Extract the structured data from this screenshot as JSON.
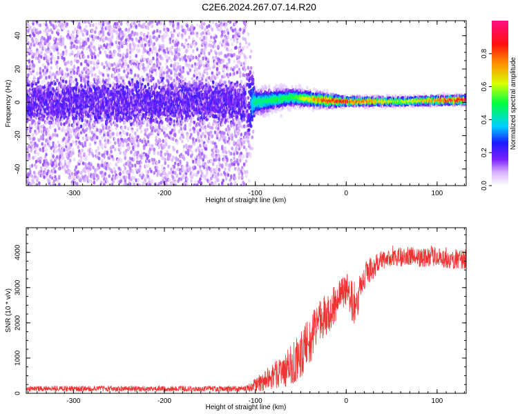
{
  "title": "C2E6.2024.267.07.14.R20",
  "colors": {
    "signal": "#ee3333",
    "scatter": "#7d2bff"
  },
  "chart_data": [
    {
      "type": "heatmap",
      "title": "C2E6.2024.267.07.14.R20",
      "xlabel": "Height of straight line (km)",
      "ylabel": "Frequency (Hz)",
      "xlim": [
        -352,
        132
      ],
      "ylim": [
        -50,
        49
      ],
      "xticks": [
        -300,
        -200,
        -100,
        0,
        100
      ],
      "yticks": [
        -40,
        -20,
        0,
        20,
        40
      ],
      "xtick_labels": [
        "-300",
        "-200",
        "-100",
        "0",
        "100"
      ],
      "ytick_labels": [
        "-40",
        "-20",
        "0",
        "20",
        "40"
      ],
      "colorbar": {
        "label": "Normalized spectral amplitude",
        "range": [
          0,
          1
        ],
        "ticks": [
          0.0,
          0.2,
          0.4,
          0.6,
          0.8
        ],
        "tick_labels": [
          "0.0",
          "0.2",
          "0.4",
          "0.6",
          "0.8"
        ]
      },
      "description_points": [
        {
          "x": -352,
          "freq_center": 0,
          "spread": 45,
          "amplitude": 0.1
        },
        {
          "x": -110,
          "freq_center": 0,
          "spread": 45,
          "amplitude": 0.1
        },
        {
          "x": -100,
          "freq_center": 0,
          "spread": 6,
          "amplitude": 0.45
        },
        {
          "x": -60,
          "freq_center": 3,
          "spread": 4,
          "amplitude": 0.5
        },
        {
          "x": -20,
          "freq_center": 1,
          "spread": 3,
          "amplitude": 0.85
        },
        {
          "x": 0,
          "freq_center": 0.5,
          "spread": 2,
          "amplitude": 0.85
        },
        {
          "x": 60,
          "freq_center": 0.5,
          "spread": 2,
          "amplitude": 0.6
        },
        {
          "x": 132,
          "freq_center": 1.5,
          "spread": 2,
          "amplitude": 0.95
        }
      ]
    },
    {
      "type": "line",
      "xlabel": "Height of straight line (km)",
      "ylabel": "SNR (10 * v/v)",
      "xlim": [
        -352,
        132
      ],
      "ylim": [
        0,
        4700
      ],
      "xticks": [
        -300,
        -200,
        -100,
        0,
        100
      ],
      "yticks": [
        0,
        1000,
        2000,
        3000,
        4000
      ],
      "xtick_labels": [
        "-300",
        "-200",
        "-100",
        "0",
        "100"
      ],
      "ytick_labels": [
        "0",
        "1000",
        "2000",
        "3000",
        "4000"
      ],
      "series": [
        {
          "name": "SNR",
          "x": [
            -352,
            -300,
            -250,
            -200,
            -150,
            -110,
            -100,
            -90,
            -80,
            -70,
            -60,
            -50,
            -40,
            -30,
            -20,
            -10,
            0,
            10,
            20,
            30,
            40,
            50,
            60,
            70,
            80,
            90,
            100,
            110,
            120,
            132
          ],
          "values": [
            130,
            130,
            130,
            130,
            130,
            130,
            250,
            350,
            500,
            650,
            800,
            1100,
            1500,
            2000,
            2300,
            2600,
            3000,
            2500,
            3300,
            3600,
            3800,
            3900,
            3900,
            3900,
            3800,
            3900,
            3900,
            3850,
            3800,
            3800
          ],
          "noise": [
            80,
            80,
            80,
            80,
            80,
            80,
            200,
            300,
            400,
            500,
            600,
            700,
            700,
            600,
            600,
            500,
            500,
            700,
            400,
            350,
            300,
            300,
            300,
            300,
            300,
            300,
            300,
            300,
            300,
            300
          ]
        }
      ]
    }
  ]
}
